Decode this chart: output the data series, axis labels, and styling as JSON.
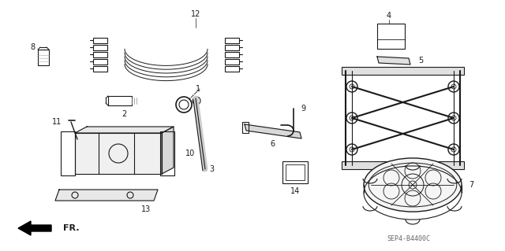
{
  "background_color": "#ffffff",
  "fig_width": 6.4,
  "fig_height": 3.19,
  "dpi": 100,
  "watermark": "SEP4-B4400C",
  "line_color": "#1a1a1a",
  "gray_color": "#888888",
  "dark_gray": "#555555"
}
